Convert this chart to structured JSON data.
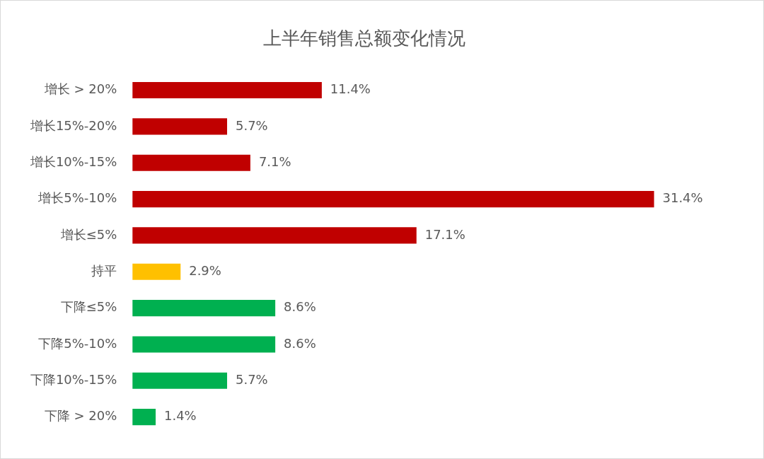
{
  "chart_data": {
    "type": "bar",
    "orientation": "horizontal",
    "title": "上半年销售总额变化情况",
    "categories": [
      "增长 > 20%",
      "增长15%-20%",
      "增长10%-15%",
      "增长5%-10%",
      "增长≤5%",
      "持平",
      "下降≤5%",
      "下降5%-10%",
      "下降10%-15%",
      "下降 > 20%"
    ],
    "values": [
      11.4,
      5.7,
      7.1,
      31.4,
      17.1,
      2.9,
      8.6,
      8.6,
      5.7,
      1.4
    ],
    "colors": [
      "#c00000",
      "#c00000",
      "#c00000",
      "#c00000",
      "#c00000",
      "#ffc000",
      "#00b050",
      "#00b050",
      "#00b050",
      "#00b050"
    ],
    "value_labels": [
      "11.4%",
      "5.7%",
      "7.1%",
      "31.4%",
      "17.1%",
      "2.9%",
      "8.6%",
      "8.6%",
      "5.7%",
      "1.4%"
    ],
    "tick_labels": "y",
    "legend": false
  }
}
